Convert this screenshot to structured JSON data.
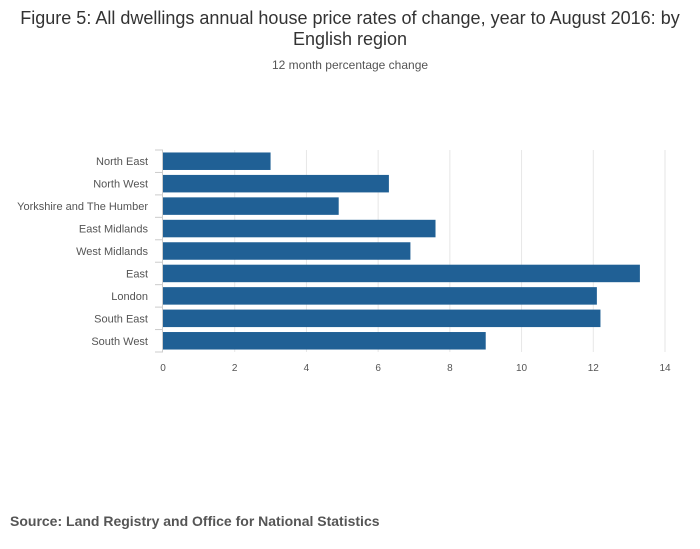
{
  "chart_data": {
    "type": "bar",
    "orientation": "horizontal",
    "title": "Figure 5: All dwellings annual house price rates of change, year to August 2016: by English region",
    "subtitle": "12 month percentage change",
    "categories": [
      "North East",
      "North West",
      "Yorkshire and The Humber",
      "East Midlands",
      "West Midlands",
      "East",
      "London",
      "South East",
      "South West"
    ],
    "values": [
      3.0,
      6.3,
      4.9,
      7.6,
      6.9,
      13.3,
      12.1,
      12.2,
      9.0
    ],
    "xlim": [
      0,
      14
    ],
    "xticks": [
      0,
      2,
      4,
      6,
      8,
      10,
      12,
      14
    ],
    "xlabel": "",
    "ylabel": "",
    "grid": true,
    "bar_color": "#206095",
    "grid_color": "#e6e6e6",
    "legend": "none"
  },
  "footer": {
    "source": "Source: Land Registry and Office for National Statistics"
  }
}
